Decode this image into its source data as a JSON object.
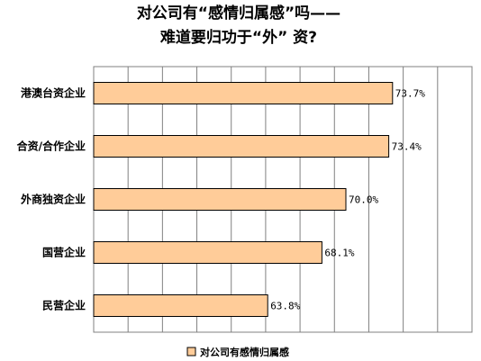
{
  "chart_data": {
    "type": "bar",
    "orientation": "horizontal",
    "title_lines": [
      "对公司有“感情归属感”吗——",
      "难道要归功于“外”  资?"
    ],
    "categories": [
      "港澳台资企业",
      "合资/合作企业",
      "外商独资企业",
      "国营企业",
      "民营企业"
    ],
    "series": [
      {
        "name": "对公司有感情归属感",
        "values": [
          73.7,
          73.4,
          70.0,
          68.1,
          63.8
        ],
        "labels": [
          "73.7%",
          "73.4%",
          "70.0%",
          "68.1%",
          "63.8%"
        ]
      }
    ],
    "xlim": [
      50,
      80
    ],
    "gridlines": "vertical",
    "legend": "bottom",
    "colors": {
      "bar": "#FFCC99",
      "bar_border": "#000000",
      "grid": "#808080"
    }
  }
}
